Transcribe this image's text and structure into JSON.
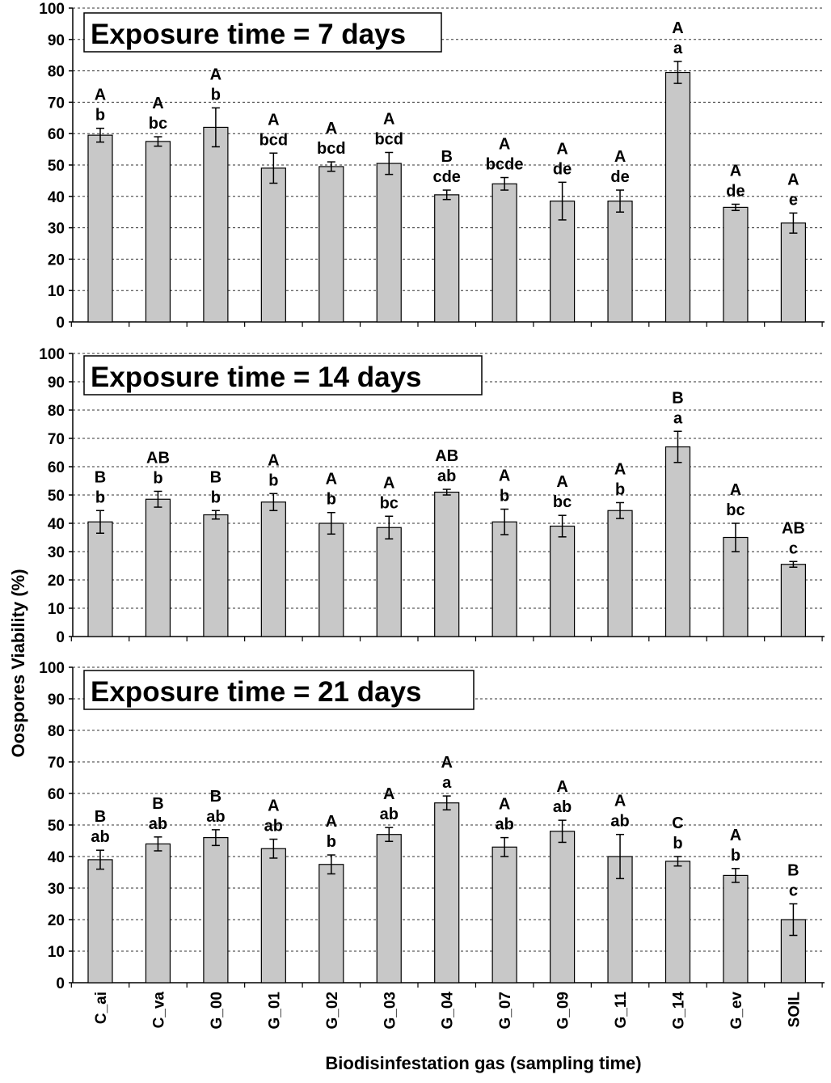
{
  "figure": {
    "xlabel": "Biodisinfestation gas (sampling time)",
    "ylabel": "Oospores Viability (%)"
  },
  "chart_data": [
    {
      "type": "bar",
      "title": "Exposure time = 7 days",
      "ylabel": "Oospores Viability (%)",
      "ylim": [
        0,
        100
      ],
      "yticks": [
        0,
        10,
        20,
        30,
        40,
        50,
        60,
        70,
        80,
        90,
        100
      ],
      "grid": true,
      "categories": [
        "C_ai",
        "C_va",
        "G_00",
        "G_01",
        "G_02",
        "G_03",
        "G_04",
        "G_07",
        "G_09",
        "G_11",
        "G_14",
        "G_ev",
        "SOIL"
      ],
      "values": [
        59.5,
        57.5,
        62,
        49,
        49.5,
        50.5,
        40.5,
        44,
        38.5,
        38.5,
        79.5,
        36.5,
        31.5
      ],
      "errors": [
        2.2,
        1.5,
        6.2,
        4.8,
        1.5,
        3.5,
        1.5,
        2,
        6,
        3.5,
        3.5,
        1,
        3.2
      ],
      "upper_letters": [
        "A",
        "A",
        "A",
        "A",
        "A",
        "A",
        "B",
        "A",
        "A",
        "A",
        "A",
        "A",
        "A"
      ],
      "lower_letters": [
        "b",
        "bc",
        "b",
        "bcd",
        "bcd",
        "bcd",
        "cde",
        "bcde",
        "de",
        "de",
        "a",
        "de",
        "e"
      ]
    },
    {
      "type": "bar",
      "title": "Exposure time = 14 days",
      "ylabel": "Oospores Viability (%)",
      "ylim": [
        0,
        100
      ],
      "yticks": [
        0,
        10,
        20,
        30,
        40,
        50,
        60,
        70,
        80,
        90,
        100
      ],
      "grid": true,
      "categories": [
        "C_ai",
        "C_va",
        "G_00",
        "G_01",
        "G_02",
        "G_03",
        "G_04",
        "G_07",
        "G_09",
        "G_11",
        "G_14",
        "G_ev",
        "SOIL"
      ],
      "values": [
        40.5,
        48.5,
        43,
        47.5,
        40,
        38.5,
        51,
        40.5,
        39,
        44.5,
        67,
        35,
        25.5
      ],
      "errors": [
        4,
        2.8,
        1.5,
        3,
        3.8,
        4,
        1,
        4.5,
        3.8,
        2.8,
        5.5,
        5,
        1
      ],
      "upper_letters": [
        "B",
        "AB",
        "B",
        "A",
        "A",
        "A",
        "AB",
        "A",
        "A",
        "A",
        "B",
        "A",
        "AB"
      ],
      "lower_letters": [
        "b",
        "b",
        "b",
        "b",
        "b",
        "bc",
        "ab",
        "b",
        "bc",
        "b",
        "a",
        "bc",
        "c"
      ]
    },
    {
      "type": "bar",
      "title": "Exposure time = 21 days",
      "ylabel": "Oospores Viability (%)",
      "ylim": [
        0,
        100
      ],
      "yticks": [
        0,
        10,
        20,
        30,
        40,
        50,
        60,
        70,
        80,
        90,
        100
      ],
      "grid": true,
      "categories": [
        "C_ai",
        "C_va",
        "G_00",
        "G_01",
        "G_02",
        "G_03",
        "G_04",
        "G_07",
        "G_09",
        "G_11",
        "G_14",
        "G_ev",
        "SOIL"
      ],
      "values": [
        39,
        44,
        46,
        42.5,
        37.5,
        47,
        57,
        43,
        48,
        40,
        38.5,
        34,
        20
      ],
      "errors": [
        3,
        2.2,
        2.5,
        3,
        3,
        2.2,
        2.2,
        3,
        3.5,
        7,
        1.5,
        2.2,
        5
      ],
      "upper_letters": [
        "B",
        "B",
        "B",
        "A",
        "A",
        "A",
        "A",
        "A",
        "A",
        "A",
        "C",
        "A",
        "B"
      ],
      "lower_letters": [
        "ab",
        "ab",
        "ab",
        "ab",
        "b",
        "ab",
        "a",
        "ab",
        "ab",
        "ab",
        "b",
        "b",
        "c"
      ]
    }
  ]
}
